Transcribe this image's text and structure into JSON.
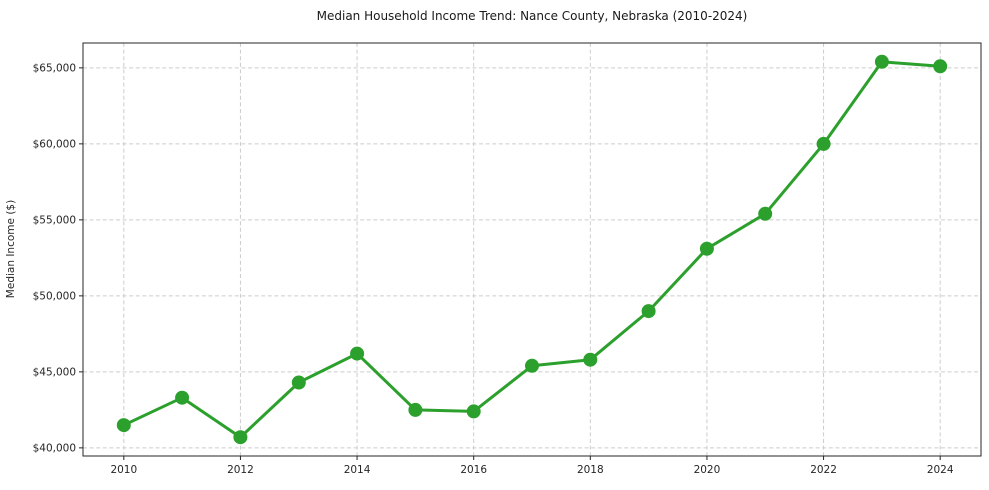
{
  "chart_data": {
    "type": "line",
    "title": "Median Household Income Trend: Nance County, Nebraska (2010-2024)",
    "xlabel": "",
    "ylabel": "Median Income ($)",
    "series": [
      {
        "name": "Median Household Income",
        "x": [
          2010,
          2011,
          2012,
          2013,
          2014,
          2015,
          2016,
          2017,
          2018,
          2019,
          2020,
          2021,
          2022,
          2023,
          2024
        ],
        "values": [
          41500,
          43300,
          40700,
          44300,
          46200,
          42500,
          42400,
          45400,
          45800,
          49000,
          53100,
          55400,
          60000,
          65400,
          65100
        ]
      }
    ],
    "xlim": [
      2009.3,
      2024.7
    ],
    "ylim": [
      39465,
      66635
    ],
    "x_ticks": [
      2010,
      2012,
      2014,
      2016,
      2018,
      2020,
      2022,
      2024
    ],
    "y_ticks": [
      40000,
      45000,
      50000,
      55000,
      60000,
      65000
    ],
    "y_tick_labels": [
      "$40,000",
      "$45,000",
      "$50,000",
      "$55,000",
      "$60,000",
      "$65,000"
    ],
    "grid": true,
    "grid_style": "dashed",
    "legend": "none",
    "marker": "circle",
    "line_color": "#2ca02c",
    "grid_color": "#cccccc",
    "axis_color": "#262626",
    "background_color": "#ffffff"
  }
}
